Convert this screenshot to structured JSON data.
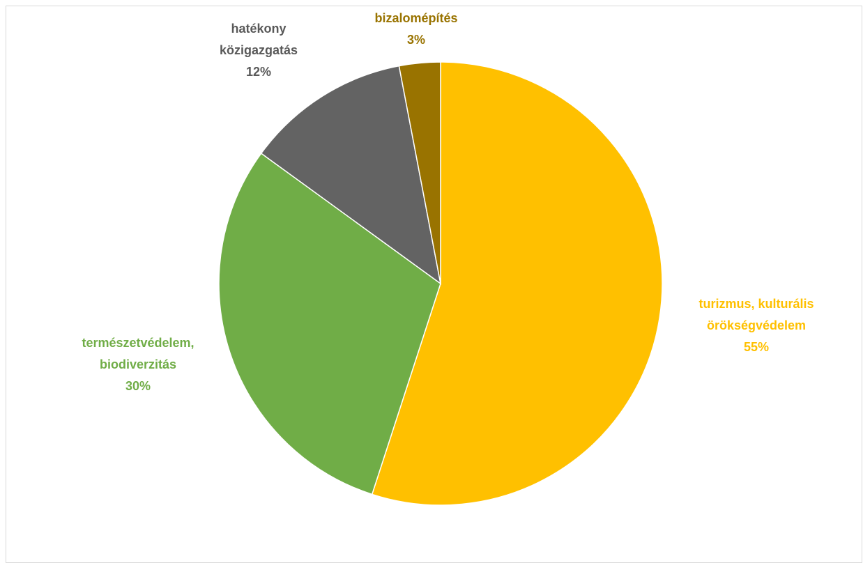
{
  "chart_data": {
    "type": "pie",
    "title": "",
    "slices": [
      {
        "label_lines": [
          "turizmus, kulturális",
          "örökségvédelem"
        ],
        "percent_label": "55%",
        "value": 55,
        "color": "#ffc000"
      },
      {
        "label_lines": [
          "természetvédelem,",
          "biodiverzitás"
        ],
        "percent_label": "30%",
        "value": 30,
        "color": "#70ad47"
      },
      {
        "label_lines": [
          "hatékony",
          "közigazgatás"
        ],
        "percent_label": "12%",
        "value": 12,
        "color": "#636363"
      },
      {
        "label_lines": [
          "bizalomépítés"
        ],
        "percent_label": "3%",
        "value": 3,
        "color": "#997300"
      }
    ],
    "start": "12 o'clock",
    "direction": "clockwise",
    "slice_border_color": "#ffffff",
    "legend": "none"
  }
}
